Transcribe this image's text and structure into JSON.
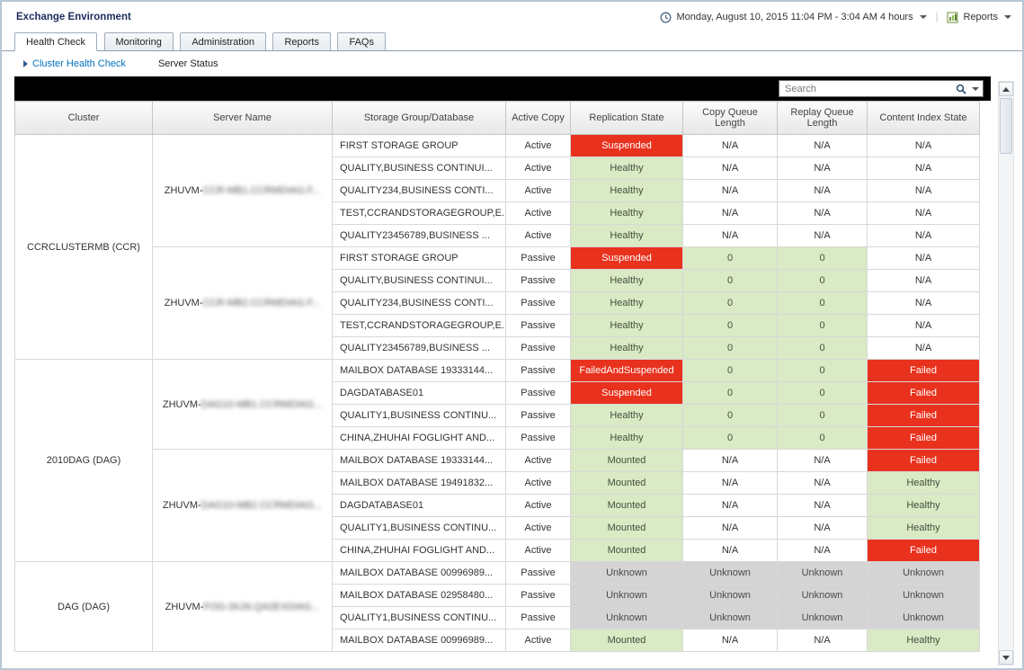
{
  "header": {
    "title": "Exchange Environment",
    "time_range": "Monday, August 10, 2015 11:04 PM - 3:04 AM 4 hours",
    "reports_label": "Reports"
  },
  "tabs": [
    {
      "label": "Health Check",
      "active": true
    },
    {
      "label": "Monitoring",
      "active": false
    },
    {
      "label": "Administration",
      "active": false
    },
    {
      "label": "Reports",
      "active": false
    },
    {
      "label": "FAQs",
      "active": false
    }
  ],
  "subnav": {
    "items": [
      {
        "label": "Cluster Health Check",
        "active": true
      },
      {
        "label": "Server Status",
        "active": false
      }
    ]
  },
  "search": {
    "placeholder": "Search"
  },
  "icons": [
    "clock-icon",
    "dropdown-arrow-icon",
    "reports-icon",
    "search-icon",
    "scroll-up-icon",
    "scroll-down-icon"
  ],
  "colors": {
    "status_red": "#e8321e",
    "status_green": "#d9eac5",
    "status_gray": "#d4d4d4",
    "accent_blue": "#0071bc",
    "toolbar_black": "#000000"
  },
  "table": {
    "columns": [
      "Cluster",
      "Server Name",
      "Storage Group/Database",
      "Active Copy",
      "Replication State",
      "Copy Queue Length",
      "Replay Queue Length",
      "Content Index State"
    ],
    "groups": [
      {
        "cluster": "CCRCLUSTERMB (CCR)",
        "servers": [
          {
            "name_prefix": "ZHUVM-",
            "name_redacted": "CCR-MB1.CCRMDIAG.F...",
            "rows": [
              {
                "db": "FIRST STORAGE GROUP",
                "active_copy": "Active",
                "replication": {
                  "text": "Suspended",
                  "style": "red"
                },
                "copy_queue": {
                  "text": "N/A",
                  "style": ""
                },
                "replay_queue": {
                  "text": "N/A",
                  "style": ""
                },
                "content_index": {
                  "text": "N/A",
                  "style": ""
                }
              },
              {
                "db": "QUALITY,BUSINESS CONTINUI...",
                "active_copy": "Active",
                "replication": {
                  "text": "Healthy",
                  "style": "green"
                },
                "copy_queue": {
                  "text": "N/A",
                  "style": ""
                },
                "replay_queue": {
                  "text": "N/A",
                  "style": ""
                },
                "content_index": {
                  "text": "N/A",
                  "style": ""
                }
              },
              {
                "db": "QUALITY234,BUSINESS CONTI...",
                "active_copy": "Active",
                "replication": {
                  "text": "Healthy",
                  "style": "green"
                },
                "copy_queue": {
                  "text": "N/A",
                  "style": ""
                },
                "replay_queue": {
                  "text": "N/A",
                  "style": ""
                },
                "content_index": {
                  "text": "N/A",
                  "style": ""
                }
              },
              {
                "db": "TEST,CCRANDSTORAGEGROUP,E...",
                "active_copy": "Active",
                "replication": {
                  "text": "Healthy",
                  "style": "green"
                },
                "copy_queue": {
                  "text": "N/A",
                  "style": ""
                },
                "replay_queue": {
                  "text": "N/A",
                  "style": ""
                },
                "content_index": {
                  "text": "N/A",
                  "style": ""
                }
              },
              {
                "db": "QUALITY23456789,BUSINESS ...",
                "active_copy": "Active",
                "replication": {
                  "text": "Healthy",
                  "style": "green"
                },
                "copy_queue": {
                  "text": "N/A",
                  "style": ""
                },
                "replay_queue": {
                  "text": "N/A",
                  "style": ""
                },
                "content_index": {
                  "text": "N/A",
                  "style": ""
                }
              }
            ]
          },
          {
            "name_prefix": "ZHUVM-",
            "name_redacted": "CCR-MB2.CCRMDIAG.F...",
            "rows": [
              {
                "db": "FIRST STORAGE GROUP",
                "active_copy": "Passive",
                "replication": {
                  "text": "Suspended",
                  "style": "red"
                },
                "copy_queue": {
                  "text": "0",
                  "style": "green"
                },
                "replay_queue": {
                  "text": "0",
                  "style": "green"
                },
                "content_index": {
                  "text": "N/A",
                  "style": ""
                }
              },
              {
                "db": "QUALITY,BUSINESS CONTINUI...",
                "active_copy": "Passive",
                "replication": {
                  "text": "Healthy",
                  "style": "green"
                },
                "copy_queue": {
                  "text": "0",
                  "style": "green"
                },
                "replay_queue": {
                  "text": "0",
                  "style": "green"
                },
                "content_index": {
                  "text": "N/A",
                  "style": ""
                }
              },
              {
                "db": "QUALITY234,BUSINESS CONTI...",
                "active_copy": "Passive",
                "replication": {
                  "text": "Healthy",
                  "style": "green"
                },
                "copy_queue": {
                  "text": "0",
                  "style": "green"
                },
                "replay_queue": {
                  "text": "0",
                  "style": "green"
                },
                "content_index": {
                  "text": "N/A",
                  "style": ""
                }
              },
              {
                "db": "TEST,CCRANDSTORAGEGROUP,E...",
                "active_copy": "Passive",
                "replication": {
                  "text": "Healthy",
                  "style": "green"
                },
                "copy_queue": {
                  "text": "0",
                  "style": "green"
                },
                "replay_queue": {
                  "text": "0",
                  "style": "green"
                },
                "content_index": {
                  "text": "N/A",
                  "style": ""
                }
              },
              {
                "db": "QUALITY23456789,BUSINESS ...",
                "active_copy": "Passive",
                "replication": {
                  "text": "Healthy",
                  "style": "green"
                },
                "copy_queue": {
                  "text": "0",
                  "style": "green"
                },
                "replay_queue": {
                  "text": "0",
                  "style": "green"
                },
                "content_index": {
                  "text": "N/A",
                  "style": ""
                }
              }
            ]
          }
        ]
      },
      {
        "cluster": "2010DAG (DAG)",
        "servers": [
          {
            "name_prefix": "ZHUVM-",
            "name_redacted": "DAG10-MB1.CCRMDIAG...",
            "rows": [
              {
                "db": "MAILBOX DATABASE 19333144...",
                "active_copy": "Passive",
                "replication": {
                  "text": "FailedAndSuspended",
                  "style": "red"
                },
                "copy_queue": {
                  "text": "0",
                  "style": "green"
                },
                "replay_queue": {
                  "text": "0",
                  "style": "green"
                },
                "content_index": {
                  "text": "Failed",
                  "style": "red"
                }
              },
              {
                "db": "DAGDATABASE01",
                "active_copy": "Passive",
                "replication": {
                  "text": "Suspended",
                  "style": "red"
                },
                "copy_queue": {
                  "text": "0",
                  "style": "green"
                },
                "replay_queue": {
                  "text": "0",
                  "style": "green"
                },
                "content_index": {
                  "text": "Failed",
                  "style": "red"
                }
              },
              {
                "db": "QUALITY1,BUSINESS CONTINU...",
                "active_copy": "Passive",
                "replication": {
                  "text": "Healthy",
                  "style": "green"
                },
                "copy_queue": {
                  "text": "0",
                  "style": "green"
                },
                "replay_queue": {
                  "text": "0",
                  "style": "green"
                },
                "content_index": {
                  "text": "Failed",
                  "style": "red"
                }
              },
              {
                "db": "CHINA,ZHUHAI FOGLIGHT AND...",
                "active_copy": "Passive",
                "replication": {
                  "text": "Healthy",
                  "style": "green"
                },
                "copy_queue": {
                  "text": "0",
                  "style": "green"
                },
                "replay_queue": {
                  "text": "0",
                  "style": "green"
                },
                "content_index": {
                  "text": "Failed",
                  "style": "red"
                }
              }
            ]
          },
          {
            "name_prefix": "ZHUVM-",
            "name_redacted": "DAG10-MB2.CCRMDIAG...",
            "rows": [
              {
                "db": "MAILBOX DATABASE 19333144...",
                "active_copy": "Active",
                "replication": {
                  "text": "Mounted",
                  "style": "green"
                },
                "copy_queue": {
                  "text": "N/A",
                  "style": ""
                },
                "replay_queue": {
                  "text": "N/A",
                  "style": ""
                },
                "content_index": {
                  "text": "Failed",
                  "style": "red"
                }
              },
              {
                "db": "MAILBOX DATABASE 19491832...",
                "active_copy": "Active",
                "replication": {
                  "text": "Mounted",
                  "style": "green"
                },
                "copy_queue": {
                  "text": "N/A",
                  "style": ""
                },
                "replay_queue": {
                  "text": "N/A",
                  "style": ""
                },
                "content_index": {
                  "text": "Healthy",
                  "style": "green"
                }
              },
              {
                "db": "DAGDATABASE01",
                "active_copy": "Active",
                "replication": {
                  "text": "Mounted",
                  "style": "green"
                },
                "copy_queue": {
                  "text": "N/A",
                  "style": ""
                },
                "replay_queue": {
                  "text": "N/A",
                  "style": ""
                },
                "content_index": {
                  "text": "Healthy",
                  "style": "green"
                }
              },
              {
                "db": "QUALITY1,BUSINESS CONTINU...",
                "active_copy": "Active",
                "replication": {
                  "text": "Mounted",
                  "style": "green"
                },
                "copy_queue": {
                  "text": "N/A",
                  "style": ""
                },
                "replay_queue": {
                  "text": "N/A",
                  "style": ""
                },
                "content_index": {
                  "text": "Healthy",
                  "style": "green"
                }
              },
              {
                "db": "CHINA,ZHUHAI FOGLIGHT AND...",
                "active_copy": "Active",
                "replication": {
                  "text": "Mounted",
                  "style": "green"
                },
                "copy_queue": {
                  "text": "N/A",
                  "style": ""
                },
                "replay_queue": {
                  "text": "N/A",
                  "style": ""
                },
                "content_index": {
                  "text": "Failed",
                  "style": "red"
                }
              }
            ]
          }
        ]
      },
      {
        "cluster": "DAG (DAG)",
        "servers": [
          {
            "name_prefix": "ZHUVM-",
            "name_redacted": "FOG-2K26.QA2EXDIAG...",
            "rows": [
              {
                "db": "MAILBOX DATABASE 00996989...",
                "active_copy": "Passive",
                "replication": {
                  "text": "Unknown",
                  "style": "gray"
                },
                "copy_queue": {
                  "text": "Unknown",
                  "style": "gray"
                },
                "replay_queue": {
                  "text": "Unknown",
                  "style": "gray"
                },
                "content_index": {
                  "text": "Unknown",
                  "style": "gray"
                }
              },
              {
                "db": "MAILBOX DATABASE 02958480...",
                "active_copy": "Passive",
                "replication": {
                  "text": "Unknown",
                  "style": "gray"
                },
                "copy_queue": {
                  "text": "Unknown",
                  "style": "gray"
                },
                "replay_queue": {
                  "text": "Unknown",
                  "style": "gray"
                },
                "content_index": {
                  "text": "Unknown",
                  "style": "gray"
                }
              },
              {
                "db": "QUALITY1,BUSINESS CONTINU...",
                "active_copy": "Passive",
                "replication": {
                  "text": "Unknown",
                  "style": "gray"
                },
                "copy_queue": {
                  "text": "Unknown",
                  "style": "gray"
                },
                "replay_queue": {
                  "text": "Unknown",
                  "style": "gray"
                },
                "content_index": {
                  "text": "Unknown",
                  "style": "gray"
                }
              },
              {
                "db": "MAILBOX DATABASE 00996989...",
                "active_copy": "Active",
                "replication": {
                  "text": "Mounted",
                  "style": "green"
                },
                "copy_queue": {
                  "text": "N/A",
                  "style": ""
                },
                "replay_queue": {
                  "text": "N/A",
                  "style": ""
                },
                "content_index": {
                  "text": "Healthy",
                  "style": "green"
                }
              }
            ]
          }
        ]
      }
    ]
  }
}
